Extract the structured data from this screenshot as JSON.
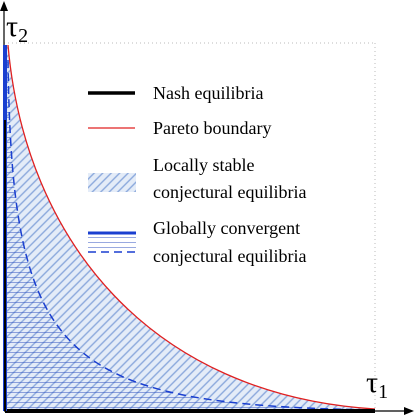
{
  "axes": {
    "x_label": {
      "symbol": "τ",
      "subscript": "1"
    },
    "y_label": {
      "symbol": "τ",
      "subscript": "2"
    }
  },
  "legend": [
    {
      "lines": [
        "Nash equilibria"
      ]
    },
    {
      "lines": [
        "Pareto boundary"
      ]
    },
    {
      "lines": [
        "Locally stable",
        "conjectural equilibria"
      ]
    },
    {
      "lines": [
        "Globally convergent",
        "conjectural equilibria"
      ]
    }
  ]
}
